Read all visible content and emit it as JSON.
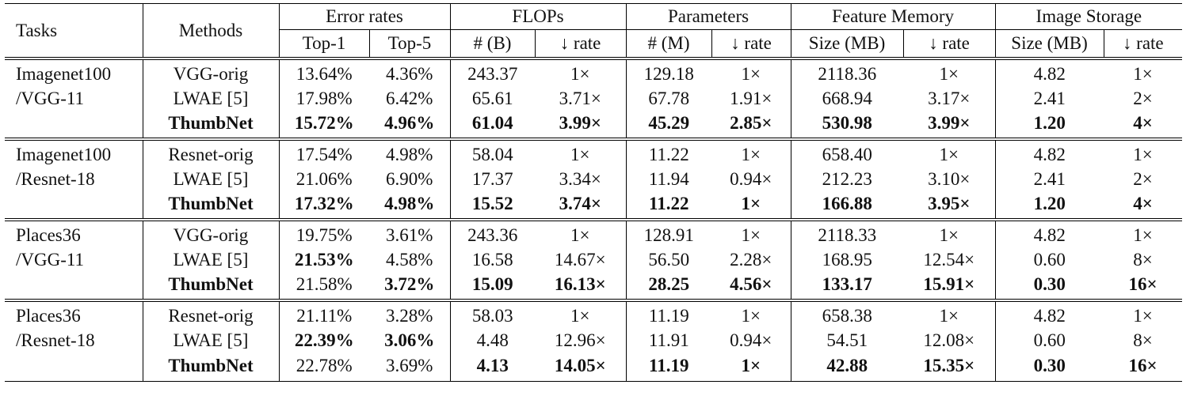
{
  "header": {
    "tasks": "Tasks",
    "methods": "Methods",
    "groups": [
      "Error rates",
      "FLOPs",
      "Parameters",
      "Feature Memory",
      "Image Storage"
    ],
    "subheaders": [
      "Top-1",
      "Top-5",
      "# (B)",
      "↓ rate",
      "# (M)",
      "↓ rate",
      "Size (MB)",
      "↓ rate",
      "Size (MB)",
      "↓ rate"
    ]
  },
  "blocks": [
    {
      "task": [
        "Imagenet100",
        "/VGG-11"
      ],
      "rows": [
        {
          "method": "VGG-orig",
          "cells": [
            "13.64%",
            "4.36%",
            "243.37",
            "1×",
            "129.18",
            "1×",
            "2118.36",
            "1×",
            "4.82",
            "1×"
          ]
        },
        {
          "method": "LWAE [5]",
          "cells": [
            "17.98%",
            "6.42%",
            "65.61",
            "3.71×",
            "67.78",
            "1.91×",
            "668.94",
            "3.17×",
            "2.41",
            "2×"
          ]
        },
        {
          "method": {
            "text": "ThumbNet",
            "bold": true
          },
          "cells": [
            {
              "text": "15.72%",
              "bold": true
            },
            {
              "text": "4.96%",
              "bold": true
            },
            {
              "text": "61.04",
              "bold": true
            },
            {
              "text": "3.99×",
              "bold": true
            },
            {
              "text": "45.29",
              "bold": true
            },
            {
              "text": "2.85×",
              "bold": true
            },
            {
              "text": "530.98",
              "bold": true
            },
            {
              "text": "3.99×",
              "bold": true
            },
            {
              "text": "1.20",
              "bold": true
            },
            {
              "text": "4×",
              "bold": true
            }
          ]
        }
      ]
    },
    {
      "task": [
        "Imagenet100",
        "/Resnet-18"
      ],
      "rows": [
        {
          "method": "Resnet-orig",
          "cells": [
            "17.54%",
            "4.98%",
            "58.04",
            "1×",
            "11.22",
            "1×",
            "658.40",
            "1×",
            "4.82",
            "1×"
          ]
        },
        {
          "method": "LWAE [5]",
          "cells": [
            "21.06%",
            "6.90%",
            "17.37",
            "3.34×",
            "11.94",
            "0.94×",
            "212.23",
            "3.10×",
            "2.41",
            "2×"
          ]
        },
        {
          "method": {
            "text": "ThumbNet",
            "bold": true
          },
          "cells": [
            {
              "text": "17.32%",
              "bold": true
            },
            {
              "text": "4.98%",
              "bold": true
            },
            {
              "text": "15.52",
              "bold": true
            },
            {
              "text": "3.74×",
              "bold": true
            },
            {
              "text": "11.22",
              "bold": true
            },
            {
              "text": "1×",
              "bold": true
            },
            {
              "text": "166.88",
              "bold": true
            },
            {
              "text": "3.95×",
              "bold": true
            },
            {
              "text": "1.20",
              "bold": true
            },
            {
              "text": "4×",
              "bold": true
            }
          ]
        }
      ]
    },
    {
      "task": [
        "Places36",
        "/VGG-11"
      ],
      "rows": [
        {
          "method": "VGG-orig",
          "cells": [
            "19.75%",
            "3.61%",
            "243.36",
            "1×",
            "128.91",
            "1×",
            "2118.33",
            "1×",
            "4.82",
            "1×"
          ]
        },
        {
          "method": "LWAE [5]",
          "cells": [
            {
              "text": "21.53%",
              "bold": true
            },
            "4.58%",
            "16.58",
            "14.67×",
            "56.50",
            "2.28×",
            "168.95",
            "12.54×",
            "0.60",
            "8×"
          ]
        },
        {
          "method": {
            "text": "ThumbNet",
            "bold": true
          },
          "cells": [
            "21.58%",
            {
              "text": "3.72%",
              "bold": true
            },
            {
              "text": "15.09",
              "bold": true
            },
            {
              "text": "16.13×",
              "bold": true
            },
            {
              "text": "28.25",
              "bold": true
            },
            {
              "text": "4.56×",
              "bold": true
            },
            {
              "text": "133.17",
              "bold": true
            },
            {
              "text": "15.91×",
              "bold": true
            },
            {
              "text": "0.30",
              "bold": true
            },
            {
              "text": "16×",
              "bold": true
            }
          ]
        }
      ]
    },
    {
      "task": [
        "Places36",
        "/Resnet-18"
      ],
      "rows": [
        {
          "method": "Resnet-orig",
          "cells": [
            "21.11%",
            "3.28%",
            "58.03",
            "1×",
            "11.19",
            "1×",
            "658.38",
            "1×",
            "4.82",
            "1×"
          ]
        },
        {
          "method": "LWAE [5]",
          "cells": [
            {
              "text": "22.39%",
              "bold": true
            },
            {
              "text": "3.06%",
              "bold": true
            },
            "4.48",
            "12.96×",
            "11.91",
            "0.94×",
            "54.51",
            "12.08×",
            "0.60",
            "8×"
          ]
        },
        {
          "method": {
            "text": "ThumbNet",
            "bold": true
          },
          "cells": [
            "22.78%",
            "3.69%",
            {
              "text": "4.13",
              "bold": true
            },
            {
              "text": "14.05×",
              "bold": true
            },
            {
              "text": "11.19",
              "bold": true
            },
            {
              "text": "1×",
              "bold": true
            },
            {
              "text": "42.88",
              "bold": true
            },
            {
              "text": "15.35×",
              "bold": true
            },
            {
              "text": "0.30",
              "bold": true
            },
            {
              "text": "16×",
              "bold": true
            }
          ]
        }
      ]
    }
  ]
}
